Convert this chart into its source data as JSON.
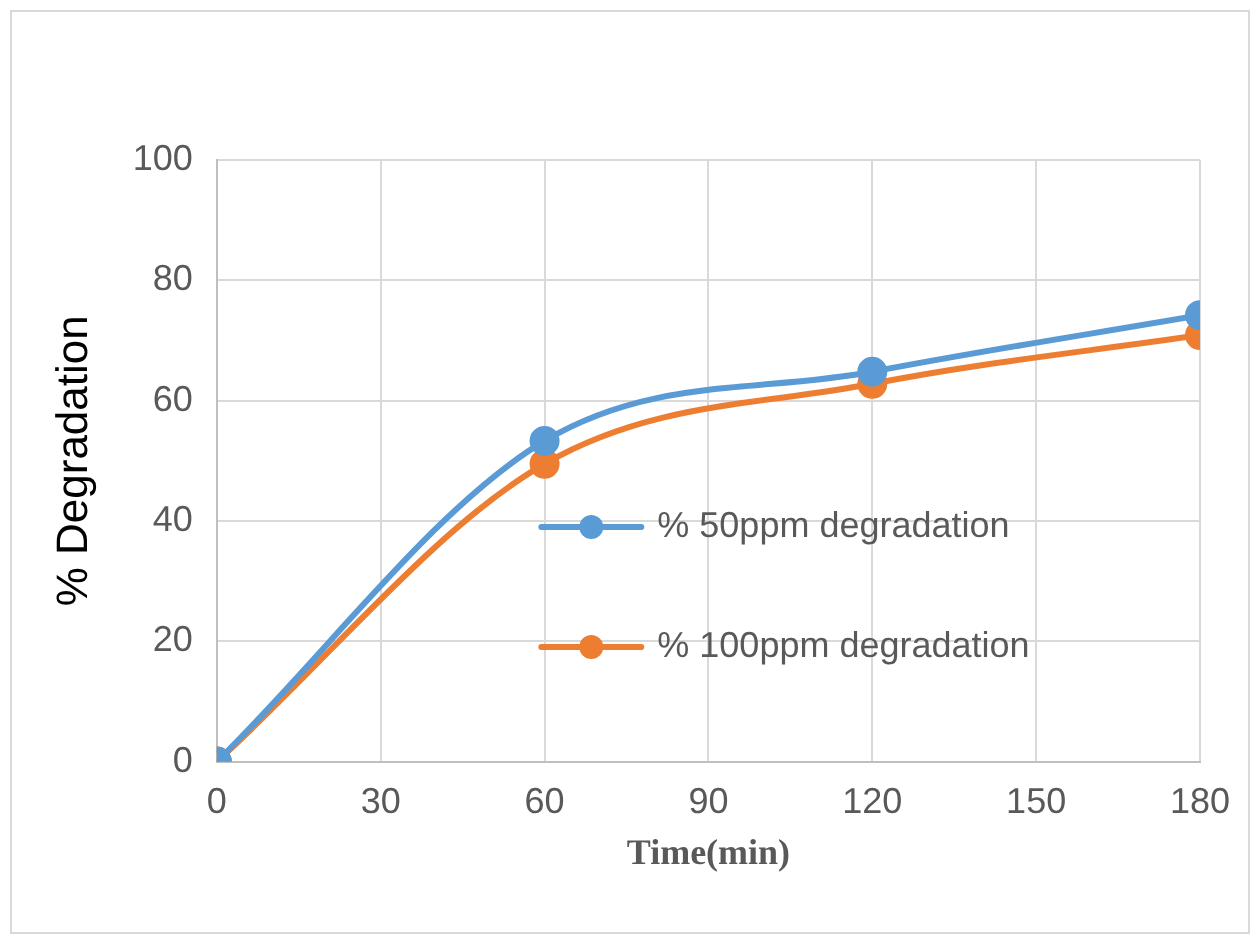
{
  "chart_data": {
    "type": "line",
    "xlabel": "Time(min)",
    "ylabel": "% Degradation",
    "x": [
      0,
      60,
      120,
      180
    ],
    "series": [
      {
        "name": "% 50ppm degradation",
        "color": "#5b9bd5",
        "values": [
          0,
          53.3,
          64.8,
          74.2
        ]
      },
      {
        "name": "% 100ppm degradation",
        "color": "#ed7d31",
        "values": [
          0,
          49.5,
          62.8,
          70.9
        ]
      }
    ],
    "xlim": [
      0,
      180
    ],
    "xticks": [
      0,
      30,
      60,
      90,
      120,
      150,
      180
    ],
    "ylim": [
      0,
      100
    ],
    "yticks": [
      0,
      20,
      40,
      60,
      80,
      100
    ],
    "grid": true,
    "legend": "center right",
    "marker": "circle",
    "line_style": "solid"
  }
}
